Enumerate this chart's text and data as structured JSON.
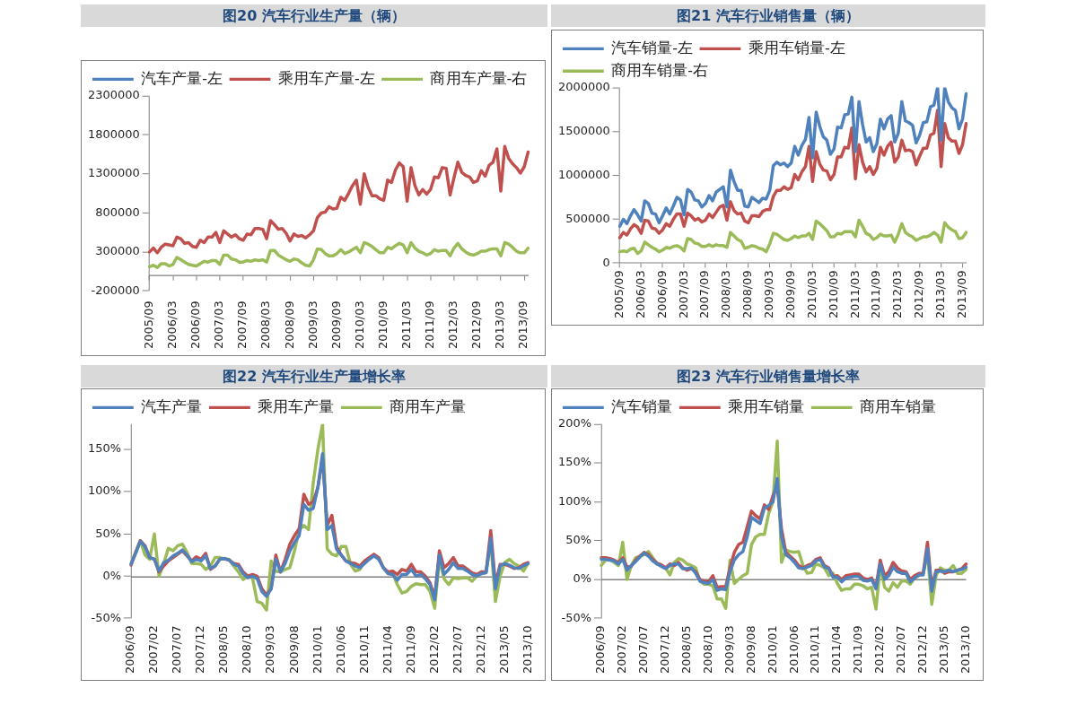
{
  "chart_data": [
    {
      "type": "line",
      "title": "图20 汽车行业生产量（辆）",
      "legend": "top",
      "marker": "none",
      "line_style": "solid",
      "grid": false,
      "categories": [
        "2005/09",
        null,
        null,
        null,
        null,
        null,
        "2006/03",
        null,
        null,
        null,
        null,
        null,
        "2006/09",
        null,
        null,
        null,
        null,
        null,
        "2007/03",
        null,
        null,
        null,
        null,
        null,
        "2007/09",
        null,
        null,
        null,
        null,
        null,
        "2008/03",
        null,
        null,
        null,
        null,
        null,
        "2008/09",
        null,
        null,
        null,
        null,
        null,
        "2009/03",
        null,
        null,
        null,
        null,
        null,
        "2009/09",
        null,
        null,
        null,
        null,
        null,
        "2010/03",
        null,
        null,
        null,
        null,
        null,
        "2010/09",
        null,
        null,
        null,
        null,
        null,
        "2011/03",
        null,
        null,
        null,
        null,
        null,
        "2011/09",
        null,
        null,
        null,
        null,
        null,
        "2012/03",
        null,
        null,
        null,
        null,
        null,
        "2012/09",
        null,
        null,
        null,
        null,
        null,
        "2013/03",
        null,
        null,
        null,
        null,
        null,
        "2013/09",
        null
      ],
      "ylim": [
        -200000,
        2300000
      ],
      "yticks": [
        -200000,
        300000,
        800000,
        1300000,
        1800000,
        2300000
      ],
      "series": [
        {
          "name": "汽车产量-左",
          "color": "#4f81bd",
          "values": [
            null,
            null,
            null,
            null,
            null,
            null,
            null,
            null,
            null,
            null,
            null,
            null,
            null,
            null,
            null,
            null,
            null,
            null,
            null,
            null,
            null,
            null,
            null,
            null,
            null,
            null,
            null,
            null,
            null,
            null,
            null,
            null,
            null,
            null,
            null,
            null,
            null,
            null,
            null,
            null,
            null,
            null,
            null,
            null,
            null,
            null,
            null,
            null,
            null,
            null,
            null,
            null,
            null,
            null,
            null,
            null,
            null,
            null,
            null,
            null,
            null,
            null,
            null,
            null,
            null,
            null,
            null,
            null,
            null,
            null,
            null,
            null,
            null,
            null,
            null,
            null,
            null,
            null,
            null,
            null,
            null,
            null,
            null,
            null,
            null,
            null,
            null,
            null,
            null,
            null,
            null,
            null,
            null,
            null,
            null,
            null,
            null,
            null
          ]
        },
        {
          "name": "乘用车产量-左",
          "color": "#c0504d",
          "values": [
            300000,
            350000,
            290000,
            360000,
            400000,
            390000,
            380000,
            490000,
            470000,
            410000,
            420000,
            370000,
            360000,
            450000,
            420000,
            490000,
            490000,
            550000,
            420000,
            570000,
            530000,
            490000,
            520000,
            470000,
            450000,
            530000,
            520000,
            600000,
            600000,
            590000,
            470000,
            700000,
            650000,
            590000,
            600000,
            540000,
            440000,
            530000,
            500000,
            510000,
            480000,
            520000,
            570000,
            740000,
            800000,
            810000,
            880000,
            850000,
            860000,
            1000000,
            960000,
            1050000,
            1150000,
            1220000,
            910000,
            1300000,
            1130000,
            1020000,
            1020000,
            980000,
            960000,
            1220000,
            1190000,
            1350000,
            1440000,
            1390000,
            950000,
            1380000,
            1150000,
            1030000,
            1100000,
            1040000,
            1100000,
            1260000,
            1250000,
            1380000,
            1370000,
            1030000,
            1250000,
            1450000,
            1320000,
            1280000,
            1260000,
            1190000,
            1210000,
            1340000,
            1270000,
            1410000,
            1450000,
            1620000,
            1080000,
            1650000,
            1500000,
            1430000,
            1380000,
            1310000,
            1390000,
            1580000
          ]
        },
        {
          "name": "商用车产量-右",
          "color": "#9bbb59",
          "values": [
            110000,
            130000,
            100000,
            150000,
            150000,
            120000,
            140000,
            230000,
            200000,
            170000,
            140000,
            130000,
            120000,
            150000,
            180000,
            170000,
            190000,
            190000,
            140000,
            260000,
            260000,
            210000,
            200000,
            170000,
            170000,
            190000,
            180000,
            200000,
            190000,
            200000,
            170000,
            320000,
            320000,
            260000,
            230000,
            200000,
            180000,
            210000,
            200000,
            160000,
            130000,
            120000,
            200000,
            340000,
            330000,
            280000,
            250000,
            250000,
            280000,
            330000,
            280000,
            300000,
            330000,
            360000,
            290000,
            420000,
            400000,
            370000,
            330000,
            290000,
            290000,
            360000,
            340000,
            380000,
            410000,
            390000,
            290000,
            420000,
            350000,
            310000,
            290000,
            260000,
            280000,
            330000,
            310000,
            320000,
            320000,
            250000,
            350000,
            410000,
            340000,
            300000,
            270000,
            260000,
            280000,
            310000,
            310000,
            330000,
            340000,
            340000,
            250000,
            420000,
            400000,
            360000,
            310000,
            290000,
            290000,
            350000
          ]
        }
      ]
    },
    {
      "type": "line",
      "title": "图21 汽车行业销售量（辆）",
      "legend": "top",
      "marker": "none",
      "line_style": "solid",
      "grid": false,
      "categories": [
        "2005/09",
        null,
        null,
        null,
        null,
        null,
        "2006/03",
        null,
        null,
        null,
        null,
        null,
        "2006/09",
        null,
        null,
        null,
        null,
        null,
        "2007/03",
        null,
        null,
        null,
        null,
        null,
        "2007/09",
        null,
        null,
        null,
        null,
        null,
        "2008/03",
        null,
        null,
        null,
        null,
        null,
        "2008/09",
        null,
        null,
        null,
        null,
        null,
        "2009/03",
        null,
        null,
        null,
        null,
        null,
        "2009/09",
        null,
        null,
        null,
        null,
        null,
        "2010/03",
        null,
        null,
        null,
        null,
        null,
        "2010/09",
        null,
        null,
        null,
        null,
        null,
        "2011/03",
        null,
        null,
        null,
        null,
        null,
        "2011/09",
        null,
        null,
        null,
        null,
        null,
        "2012/03",
        null,
        null,
        null,
        null,
        null,
        "2012/09",
        null,
        null,
        null,
        null,
        null,
        "2013/03",
        null,
        null,
        null,
        null,
        null,
        "2013/09",
        null
      ],
      "ylim": [
        0,
        2000000
      ],
      "yticks": [
        0,
        500000,
        1000000,
        1500000,
        2000000
      ],
      "series": [
        {
          "name": "汽车销量-左",
          "color": "#4f81bd",
          "values": [
            420000,
            500000,
            450000,
            540000,
            610000,
            550000,
            480000,
            710000,
            680000,
            570000,
            560000,
            460000,
            540000,
            630000,
            560000,
            650000,
            750000,
            720000,
            550000,
            840000,
            810000,
            720000,
            710000,
            640000,
            680000,
            770000,
            710000,
            810000,
            840000,
            870000,
            640000,
            1060000,
            930000,
            830000,
            830000,
            650000,
            640000,
            750000,
            720000,
            690000,
            740000,
            730000,
            830000,
            1110000,
            1150000,
            1120000,
            1140000,
            1100000,
            1140000,
            1330000,
            1230000,
            1340000,
            1410000,
            1660000,
            1200000,
            1720000,
            1560000,
            1440000,
            1400000,
            1240000,
            1300000,
            1550000,
            1540000,
            1690000,
            1700000,
            1890000,
            1270000,
            1840000,
            1580000,
            1380000,
            1430000,
            1270000,
            1360000,
            1640000,
            1530000,
            1640000,
            1680000,
            1380000,
            1480000,
            1840000,
            1620000,
            1600000,
            1570000,
            1370000,
            1460000,
            1600000,
            1610000,
            1780000,
            1800000,
            2000000,
            1400000,
            2000000,
            1840000,
            1770000,
            1740000,
            1530000,
            1640000,
            1930000
          ]
        },
        {
          "name": "乘用车销量-左",
          "color": "#c0504d",
          "values": [
            290000,
            350000,
            320000,
            390000,
            440000,
            410000,
            340000,
            490000,
            480000,
            400000,
            390000,
            340000,
            380000,
            450000,
            420000,
            500000,
            560000,
            560000,
            420000,
            570000,
            540000,
            490000,
            510000,
            470000,
            490000,
            560000,
            520000,
            580000,
            640000,
            660000,
            490000,
            700000,
            600000,
            560000,
            570000,
            480000,
            460000,
            540000,
            540000,
            530000,
            590000,
            610000,
            610000,
            760000,
            830000,
            830000,
            870000,
            840000,
            860000,
            1010000,
            950000,
            1040000,
            1100000,
            1330000,
            930000,
            1270000,
            1130000,
            1060000,
            1050000,
            950000,
            1010000,
            1210000,
            1210000,
            1320000,
            1310000,
            1540000,
            960000,
            1350000,
            1150000,
            1040000,
            1100000,
            1010000,
            1080000,
            1320000,
            1230000,
            1330000,
            1380000,
            1150000,
            1210000,
            1400000,
            1280000,
            1290000,
            1270000,
            1120000,
            1220000,
            1310000,
            1310000,
            1460000,
            1480000,
            1740000,
            1100000,
            1590000,
            1430000,
            1390000,
            1390000,
            1250000,
            1350000,
            1590000
          ]
        },
        {
          "name": "商用车销量-右",
          "color": "#9bbb59",
          "values": [
            130000,
            140000,
            130000,
            160000,
            170000,
            110000,
            140000,
            240000,
            210000,
            180000,
            160000,
            130000,
            150000,
            180000,
            170000,
            190000,
            200000,
            180000,
            140000,
            280000,
            270000,
            230000,
            220000,
            190000,
            190000,
            210000,
            190000,
            210000,
            200000,
            200000,
            180000,
            350000,
            310000,
            270000,
            250000,
            170000,
            180000,
            200000,
            190000,
            170000,
            160000,
            130000,
            220000,
            340000,
            330000,
            300000,
            270000,
            260000,
            280000,
            310000,
            290000,
            310000,
            310000,
            340000,
            270000,
            480000,
            450000,
            410000,
            370000,
            300000,
            300000,
            340000,
            330000,
            360000,
            360000,
            360000,
            300000,
            490000,
            420000,
            340000,
            320000,
            270000,
            290000,
            330000,
            310000,
            310000,
            320000,
            240000,
            330000,
            450000,
            350000,
            320000,
            300000,
            260000,
            280000,
            300000,
            300000,
            320000,
            350000,
            320000,
            240000,
            460000,
            410000,
            380000,
            360000,
            280000,
            290000,
            350000
          ]
        }
      ]
    },
    {
      "type": "line",
      "title": "图22 汽车行业生产量增长率",
      "legend": "top",
      "marker": "none",
      "line_style": "solid",
      "grid": false,
      "categories": [
        "2006/09",
        null,
        null,
        null,
        null,
        "2007/02",
        null,
        null,
        null,
        null,
        "2007/07",
        null,
        null,
        null,
        null,
        "2007/12",
        null,
        null,
        null,
        null,
        "2008/05",
        null,
        null,
        null,
        null,
        "2008/10",
        null,
        null,
        null,
        null,
        "2009/03",
        null,
        null,
        null,
        null,
        "2009/08",
        null,
        null,
        null,
        null,
        "2010/01",
        null,
        null,
        null,
        null,
        "2010/06",
        null,
        null,
        null,
        null,
        "2010/11",
        null,
        null,
        null,
        null,
        "2011/04",
        null,
        null,
        null,
        null,
        "2011/09",
        null,
        null,
        null,
        null,
        "2012/02",
        null,
        null,
        null,
        null,
        "2012/07",
        null,
        null,
        null,
        null,
        "2012/12",
        null,
        null,
        null,
        null,
        "2013/05",
        null,
        null,
        null,
        null,
        "2013/10"
      ],
      "ref_lines": [
        {
          "axis": "y",
          "value": 0
        }
      ],
      "ylim": [
        -50,
        180
      ],
      "yticks": [
        {
          "value": -50,
          "label": "-50%"
        },
        {
          "value": 0,
          "label": "0%"
        },
        {
          "value": 50,
          "label": "50%"
        },
        {
          "value": 100,
          "label": "100%"
        },
        {
          "value": 150,
          "label": "150%"
        }
      ],
      "series": [
        {
          "name": "汽车产量",
          "color": "#4f81bd",
          "values": [
            14,
            27,
            41,
            35,
            22,
            20,
            6,
            16,
            19,
            24,
            27,
            31,
            25,
            17,
            20,
            18,
            24,
            9,
            12,
            20,
            21,
            19,
            14,
            12,
            3,
            -2,
            0,
            -3,
            -18,
            -24,
            -15,
            20,
            5,
            15,
            30,
            40,
            48,
            85,
            78,
            80,
            105,
            145,
            55,
            60,
            32,
            25,
            18,
            15,
            12,
            10,
            15,
            20,
            24,
            20,
            10,
            3,
            2,
            -5,
            2,
            2,
            8,
            0,
            2,
            -3,
            -10,
            -28,
            25,
            2,
            8,
            16,
            9,
            9,
            6,
            2,
            0,
            3,
            4,
            45,
            -15,
            12,
            15,
            13,
            10,
            9,
            12,
            15
          ]
        },
        {
          "name": "乘用车产量",
          "color": "#c0504d",
          "values": [
            13,
            28,
            42,
            36,
            22,
            20,
            5,
            12,
            18,
            22,
            26,
            30,
            24,
            18,
            23,
            20,
            27,
            8,
            12,
            20,
            21,
            19,
            15,
            14,
            5,
            0,
            2,
            0,
            -15,
            -22,
            -15,
            25,
            5,
            20,
            38,
            48,
            56,
            97,
            85,
            88,
            105,
            140,
            60,
            72,
            35,
            25,
            18,
            16,
            15,
            12,
            18,
            22,
            26,
            22,
            10,
            5,
            6,
            2,
            8,
            6,
            14,
            5,
            5,
            0,
            -8,
            -25,
            30,
            10,
            15,
            22,
            12,
            12,
            8,
            4,
            2,
            5,
            5,
            54,
            -10,
            14,
            14,
            12,
            9,
            10,
            14,
            16
          ]
        },
        {
          "name": "商用车产量",
          "color": "#9bbb59",
          "values": [
            15,
            28,
            42,
            25,
            20,
            50,
            0,
            15,
            33,
            30,
            36,
            38,
            28,
            15,
            15,
            14,
            8,
            12,
            22,
            22,
            20,
            20,
            12,
            5,
            -4,
            0,
            -2,
            -30,
            -32,
            -40,
            18,
            6,
            5,
            8,
            10,
            30,
            55,
            60,
            55,
            110,
            150,
            180,
            32,
            26,
            24,
            35,
            35,
            14,
            6,
            8,
            18,
            22,
            24,
            22,
            10,
            4,
            4,
            -10,
            -20,
            -18,
            -12,
            -9,
            -10,
            -10,
            -18,
            -38,
            20,
            -3,
            -10,
            -2,
            -3,
            -2,
            -2,
            -6,
            0,
            3,
            5,
            40,
            -30,
            0,
            16,
            20,
            15,
            12,
            6,
            15
          ]
        }
      ]
    },
    {
      "type": "line",
      "title": "图23 汽车行业销售量增长率",
      "legend": "top",
      "marker": "none",
      "line_style": "solid",
      "grid": false,
      "categories": [
        "2006/09",
        null,
        null,
        null,
        null,
        "2007/02",
        null,
        null,
        null,
        null,
        "2007/07",
        null,
        null,
        null,
        null,
        "2007/12",
        null,
        null,
        null,
        null,
        "2008/05",
        null,
        null,
        null,
        null,
        "2008/10",
        null,
        null,
        null,
        null,
        "2009/03",
        null,
        null,
        null,
        null,
        "2009/08",
        null,
        null,
        null,
        null,
        "2010/01",
        null,
        null,
        null,
        null,
        "2010/06",
        null,
        null,
        null,
        null,
        "2010/11",
        null,
        null,
        null,
        null,
        "2011/04",
        null,
        null,
        null,
        null,
        "2011/09",
        null,
        null,
        null,
        null,
        "2012/02",
        null,
        null,
        null,
        null,
        "2012/07",
        null,
        null,
        null,
        null,
        "2012/12",
        null,
        null,
        null,
        null,
        "2013/05",
        null,
        null,
        null,
        null,
        "2013/10"
      ],
      "ref_lines": [
        {
          "axis": "y",
          "value": 0
        }
      ],
      "ylim": [
        -50,
        200
      ],
      "yticks": [
        {
          "value": -50,
          "label": "-50%"
        },
        {
          "value": 0,
          "label": "0%"
        },
        {
          "value": 50,
          "label": "50%"
        },
        {
          "value": 100,
          "label": "100%"
        },
        {
          "value": 150,
          "label": "150%"
        },
        {
          "value": 200,
          "label": "200%"
        }
      ],
      "series": [
        {
          "name": "汽车销量",
          "color": "#4f81bd",
          "values": [
            26,
            26,
            25,
            24,
            20,
            26,
            12,
            18,
            23,
            29,
            34,
            30,
            24,
            20,
            17,
            14,
            18,
            20,
            20,
            14,
            14,
            15,
            8,
            -2,
            -4,
            -5,
            0,
            -14,
            -12,
            -13,
            10,
            25,
            32,
            36,
            55,
            80,
            76,
            72,
            92,
            95,
            100,
            130,
            55,
            32,
            28,
            22,
            15,
            14,
            16,
            18,
            24,
            26,
            16,
            14,
            3,
            3,
            -3,
            2,
            3,
            4,
            4,
            -1,
            -2,
            0,
            -12,
            20,
            0,
            5,
            16,
            10,
            8,
            8,
            -3,
            2,
            6,
            6,
            40,
            -15,
            10,
            11,
            10,
            12,
            10,
            12,
            13,
            16
          ]
        },
        {
          "name": "乘用车销量",
          "color": "#c0504d",
          "values": [
            28,
            28,
            27,
            25,
            22,
            28,
            16,
            17,
            25,
            30,
            35,
            32,
            26,
            21,
            19,
            15,
            20,
            18,
            22,
            15,
            12,
            14,
            10,
            0,
            -2,
            -3,
            5,
            -10,
            -9,
            -9,
            15,
            35,
            45,
            48,
            68,
            88,
            82,
            78,
            96,
            90,
            108,
            120,
            65,
            35,
            30,
            25,
            18,
            15,
            18,
            20,
            26,
            28,
            18,
            15,
            4,
            5,
            0,
            5,
            6,
            7,
            7,
            2,
            0,
            2,
            -10,
            25,
            5,
            10,
            22,
            15,
            11,
            10,
            0,
            5,
            8,
            8,
            48,
            -10,
            12,
            12,
            8,
            10,
            10,
            12,
            14,
            20
          ]
        },
        {
          "name": "商用车销量",
          "color": "#9bbb59",
          "values": [
            18,
            25,
            26,
            22,
            18,
            48,
            0,
            18,
            28,
            30,
            32,
            36,
            28,
            20,
            18,
            15,
            6,
            22,
            27,
            25,
            20,
            18,
            15,
            -2,
            -6,
            -6,
            -8,
            -25,
            -25,
            -37,
            25,
            -5,
            0,
            5,
            8,
            45,
            55,
            58,
            58,
            85,
            100,
            178,
            22,
            38,
            36,
            35,
            36,
            18,
            8,
            9,
            20,
            18,
            15,
            5,
            8,
            -5,
            -14,
            -12,
            -12,
            -6,
            -6,
            -8,
            -12,
            -10,
            -38,
            18,
            -10,
            -15,
            -4,
            -10,
            -2,
            -2,
            -6,
            2,
            5,
            8,
            34,
            -32,
            5,
            15,
            12,
            12,
            18,
            8,
            8,
            13
          ]
        }
      ]
    }
  ]
}
